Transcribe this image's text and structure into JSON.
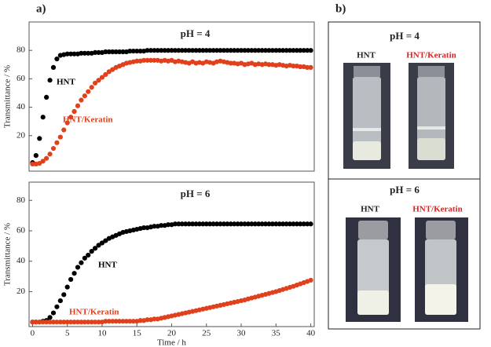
{
  "panel_labels": [
    "a)",
    "b)"
  ],
  "chart_data": [
    {
      "type": "scatter",
      "title": "pH = 4",
      "ylabel": "Transmittance / %",
      "x": [
        0,
        0.5,
        1,
        1.5,
        2,
        2.5,
        3,
        3.5,
        4,
        4.5,
        5,
        5.5,
        6,
        6.5,
        7,
        7.5,
        8,
        8.5,
        9,
        9.5,
        10,
        10.5,
        11,
        11.5,
        12,
        12.5,
        13,
        13.5,
        14,
        14.5,
        15,
        15.5,
        16,
        16.5,
        17,
        17.5,
        18,
        18.5,
        19,
        19.5,
        20,
        20.5,
        21,
        21.5,
        22,
        22.5,
        23,
        23.5,
        24,
        24.5,
        25,
        25.5,
        26,
        26.5,
        27,
        27.5,
        28,
        28.5,
        29,
        29.5,
        30,
        30.5,
        31,
        31.5,
        32,
        32.5,
        33,
        33.5,
        34,
        34.5,
        35,
        35.5,
        36,
        36.5,
        37,
        37.5,
        38,
        38.5,
        39,
        39.5,
        40
      ],
      "series": [
        {
          "name": "HNT",
          "color": "#000000",
          "values": [
            1,
            6,
            18,
            33,
            47,
            59,
            68,
            74,
            76.5,
            77,
            77.5,
            77.5,
            77.5,
            77.5,
            78,
            78,
            78,
            78,
            78.5,
            78.5,
            78.5,
            79,
            79,
            79,
            79,
            79,
            79,
            79,
            79.5,
            79.5,
            79.5,
            79.5,
            79.5,
            80,
            80,
            80,
            80,
            80,
            80,
            80,
            80,
            80,
            80,
            80,
            80,
            80,
            80,
            80,
            80,
            80,
            80,
            80,
            80,
            80,
            80,
            80,
            80,
            80,
            80,
            80,
            80,
            80,
            80,
            80,
            80,
            80,
            80,
            80,
            80,
            80,
            80,
            80,
            80,
            80,
            80,
            80,
            80,
            80,
            80,
            80,
            80
          ]
        },
        {
          "name": "HNT/Keratin",
          "color": "#e0401c",
          "values": [
            0,
            0,
            0.5,
            2,
            4,
            7,
            11,
            15,
            19,
            24,
            29,
            33,
            37,
            41,
            45,
            48,
            51,
            54,
            57,
            59,
            61,
            63,
            65,
            66.5,
            68,
            69,
            70,
            71,
            71.5,
            72,
            72.5,
            72.5,
            73,
            73,
            73,
            73,
            73,
            72.5,
            73,
            72.5,
            73,
            72,
            72.5,
            72,
            71.5,
            71,
            72,
            71,
            71.5,
            71,
            72,
            71.5,
            71,
            72,
            72.5,
            72,
            71.5,
            71,
            71,
            70.5,
            71,
            70,
            70.5,
            71,
            70,
            70.5,
            70,
            70.5,
            70,
            70,
            69.5,
            70,
            69.5,
            69,
            69.5,
            69,
            69,
            68.5,
            68.5,
            68,
            68
          ]
        }
      ],
      "xlim": [
        -0.5,
        40.5
      ],
      "ylim": [
        -5,
        100
      ],
      "yticks": [
        20,
        40,
        60,
        80
      ]
    },
    {
      "type": "scatter",
      "title": "pH = 6",
      "ylabel": "Transmittance / %",
      "xlabel": "Time / h",
      "x": [
        0,
        0.5,
        1,
        1.5,
        2,
        2.5,
        3,
        3.5,
        4,
        4.5,
        5,
        5.5,
        6,
        6.5,
        7,
        7.5,
        8,
        8.5,
        9,
        9.5,
        10,
        10.5,
        11,
        11.5,
        12,
        12.5,
        13,
        13.5,
        14,
        14.5,
        15,
        15.5,
        16,
        16.5,
        17,
        17.5,
        18,
        18.5,
        19,
        19.5,
        20,
        20.5,
        21,
        21.5,
        22,
        22.5,
        23,
        23.5,
        24,
        24.5,
        25,
        25.5,
        26,
        26.5,
        27,
        27.5,
        28,
        28.5,
        29,
        29.5,
        30,
        30.5,
        31,
        31.5,
        32,
        32.5,
        33,
        33.5,
        34,
        34.5,
        35,
        35.5,
        36,
        36.5,
        37,
        37.5,
        38,
        38.5,
        39,
        39.5,
        40
      ],
      "series": [
        {
          "name": "HNT",
          "color": "#000000",
          "values": [
            0,
            0,
            0,
            0.5,
            1,
            3,
            6,
            10,
            14,
            18,
            23,
            28,
            32,
            36,
            39,
            42,
            44,
            46.5,
            48.5,
            50.5,
            52,
            53.5,
            55,
            56,
            57,
            58,
            59,
            59.5,
            60,
            60.5,
            61,
            61.5,
            62,
            62,
            62.5,
            63,
            63,
            63.5,
            63.5,
            64,
            64,
            64.5,
            64.5,
            64.5,
            64.5,
            64.5,
            64.5,
            64.5,
            64.5,
            64.5,
            64.5,
            64.5,
            64.5,
            64.5,
            64.5,
            64.5,
            64.5,
            64.5,
            64.5,
            64.5,
            64.5,
            64.5,
            64.5,
            64.5,
            64.5,
            64.5,
            64.5,
            64.5,
            64.5,
            64.5,
            64.5,
            64.5,
            64.5,
            64.5,
            64.5,
            64.5,
            64.5,
            64.5,
            64.5,
            64.5,
            64.5
          ]
        },
        {
          "name": "HNT/Keratin",
          "color": "#e0401c",
          "values": [
            0,
            0,
            0,
            0,
            0,
            0,
            0,
            0,
            0,
            0,
            0,
            0,
            0,
            0,
            0,
            0,
            0,
            0,
            0,
            0,
            0,
            0.5,
            0.5,
            0.5,
            0.5,
            0.5,
            0.5,
            0.5,
            0.5,
            0.5,
            0.5,
            1,
            1,
            1.5,
            1.5,
            2,
            2,
            2.5,
            3,
            3.5,
            4,
            4.5,
            5,
            5.5,
            6,
            6.5,
            7,
            7.5,
            8,
            8.5,
            9,
            9.5,
            10,
            10.5,
            11,
            11.5,
            12,
            12.5,
            13,
            13.5,
            14,
            14.5,
            15.2,
            15.8,
            16.4,
            17,
            17.6,
            18.2,
            18.8,
            19.4,
            20,
            20.7,
            21.4,
            22.1,
            22.8,
            23.5,
            24.3,
            25.1,
            25.9,
            26.7,
            27.5
          ]
        }
      ],
      "xlim": [
        -0.5,
        40.5
      ],
      "ylim": [
        -3,
        92
      ],
      "yticks": [
        20,
        40,
        60,
        80
      ],
      "xticks": [
        0,
        5,
        10,
        15,
        20,
        25,
        30,
        35,
        40
      ]
    }
  ],
  "photos": [
    {
      "title": "pH = 4",
      "labels": [
        "HNT",
        "HNT/Keratin"
      ]
    },
    {
      "title": "pH = 6",
      "labels": [
        "HNT",
        "HNT/Keratin"
      ]
    }
  ]
}
